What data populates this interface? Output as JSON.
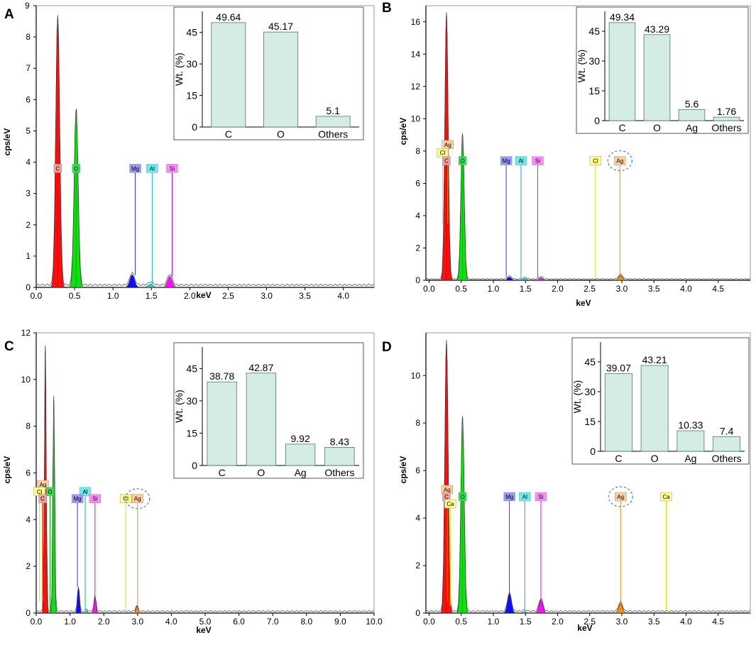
{
  "chart_data": [
    {
      "panel": "A",
      "type": "area",
      "xlabel": "keV",
      "ylabel": "cps/eV",
      "xlim": [
        0,
        4.4
      ],
      "ylim": [
        0,
        9
      ],
      "xticks": [
        "0.0",
        "0.5",
        "1.0",
        "1.5",
        "2.0",
        "2.5",
        "3.0",
        "3.5",
        "4.0"
      ],
      "yticks": [
        "0",
        "1",
        "2",
        "3",
        "4",
        "5",
        "6",
        "7",
        "8",
        "9"
      ],
      "peaks": [
        {
          "element": "C",
          "energy": 0.28,
          "height": 8.7,
          "color": "#ff0000"
        },
        {
          "element": "O",
          "energy": 0.52,
          "height": 5.7,
          "color": "#00e000"
        },
        {
          "element": "Mg",
          "energy": 1.25,
          "height": 0.4,
          "color": "#0000ff"
        },
        {
          "element": "Al",
          "energy": 1.49,
          "height": 0.1,
          "color": "#00dddd"
        },
        {
          "element": "Si",
          "energy": 1.74,
          "height": 0.35,
          "color": "#ff00ff"
        }
      ],
      "element_labels": [
        {
          "text": "C",
          "energy": 0.28,
          "y": 3.8,
          "line_to": 0,
          "bg": "#f4a0a0"
        },
        {
          "text": "O",
          "energy": 0.52,
          "y": 3.8,
          "line_to": 0,
          "bg": "#33dd55"
        },
        {
          "text": "Mg",
          "energy": 1.29,
          "y": 3.8,
          "line_to": 0.4,
          "bg": "#9999ff"
        },
        {
          "text": "Al",
          "energy": 1.51,
          "y": 3.8,
          "line_to": 0.1,
          "bg": "#66eeee"
        },
        {
          "text": "Si",
          "energy": 1.77,
          "y": 3.8,
          "line_to": 0.35,
          "bg": "#ff88ff"
        }
      ],
      "inset": {
        "type": "bar",
        "ylabel": "Wt. (%)",
        "ylim": [
          0,
          55
        ],
        "yticks": [
          "0",
          "15",
          "30",
          "45"
        ],
        "categories": [
          "C",
          "O",
          "Others"
        ],
        "values": [
          49.64,
          45.17,
          5.1
        ],
        "value_labels": [
          "49.64",
          "45.17",
          "5.1"
        ]
      }
    },
    {
      "panel": "B",
      "type": "area",
      "xlabel": "keV",
      "ylabel": "cps/eV",
      "xlim": [
        -0.05,
        5.0
      ],
      "ylim": [
        0,
        17
      ],
      "xticks": [
        "0.0",
        "0.5",
        "1.0",
        "1.5",
        "2.0",
        "2.5",
        "3.0",
        "3.5",
        "4.0",
        "4.5"
      ],
      "yticks": [
        "0",
        "2",
        "4",
        "6",
        "8",
        "10",
        "12",
        "14",
        "16"
      ],
      "peaks": [
        {
          "element": "C",
          "energy": 0.27,
          "height": 16.6,
          "color": "#ff0000"
        },
        {
          "element": "O",
          "energy": 0.52,
          "height": 9.1,
          "color": "#00e000"
        },
        {
          "element": "Mg",
          "energy": 1.25,
          "height": 0.2,
          "color": "#0000ff"
        },
        {
          "element": "Al",
          "energy": 1.49,
          "height": 0.1,
          "color": "#00dddd"
        },
        {
          "element": "Si",
          "energy": 1.74,
          "height": 0.15,
          "color": "#ff00ff"
        },
        {
          "element": "Ag",
          "energy": 2.98,
          "height": 0.3,
          "color": "#ff8800"
        }
      ],
      "element_labels": [
        {
          "text": "Ag",
          "energy": 0.29,
          "y": 8.4,
          "line_to": 3.5,
          "bg": "#ffcc99"
        },
        {
          "text": "Cl",
          "energy": 0.21,
          "y": 7.9,
          "line_to": 3.5,
          "bg": "#ffff88"
        },
        {
          "text": "C",
          "energy": 0.27,
          "y": 7.4,
          "line_to": 0,
          "bg": "#f4a0a0"
        },
        {
          "text": "O",
          "energy": 0.52,
          "y": 7.4,
          "line_to": 0,
          "bg": "#33dd55"
        },
        {
          "text": "Mg",
          "energy": 1.2,
          "y": 7.4,
          "line_to": 0.2,
          "bg": "#9999ff"
        },
        {
          "text": "Al",
          "energy": 1.43,
          "y": 7.4,
          "line_to": 0.1,
          "bg": "#66eeee"
        },
        {
          "text": "Si",
          "energy": 1.69,
          "y": 7.4,
          "line_to": 0.15,
          "bg": "#ff88ff"
        },
        {
          "text": "Cl",
          "energy": 2.59,
          "y": 7.4,
          "line_to": 0.1,
          "bg": "#ffff88"
        },
        {
          "text": "Ag",
          "energy": 2.97,
          "y": 7.4,
          "line_to": 0.3,
          "bg": "#ffcc99",
          "circled": true
        }
      ],
      "inset": {
        "type": "bar",
        "ylabel": "Wt. (%)",
        "ylim": [
          0,
          55
        ],
        "yticks": [
          "0",
          "15",
          "30",
          "45"
        ],
        "categories": [
          "C",
          "O",
          "Ag",
          "Others"
        ],
        "values": [
          49.34,
          43.29,
          5.6,
          1.76
        ],
        "value_labels": [
          "49.34",
          "43.29",
          "5.6",
          "1.76"
        ]
      }
    },
    {
      "panel": "C",
      "type": "area",
      "xlabel": "keV",
      "ylabel": "cps/eV",
      "xlim": [
        0,
        10.0
      ],
      "ylim": [
        0,
        12
      ],
      "xticks": [
        "0.0",
        "1.0",
        "2.0",
        "3.0",
        "4.0",
        "5.0",
        "6.0",
        "7.0",
        "8.0",
        "9.0",
        "10.0"
      ],
      "yticks": [
        "0",
        "2",
        "4",
        "6",
        "8",
        "10",
        "12"
      ],
      "peaks": [
        {
          "element": "C",
          "energy": 0.27,
          "height": 11.4,
          "color": "#ff0000"
        },
        {
          "element": "O",
          "energy": 0.52,
          "height": 9.3,
          "color": "#00e000"
        },
        {
          "element": "Mg",
          "energy": 1.25,
          "height": 1.1,
          "color": "#0000ff"
        },
        {
          "element": "Al",
          "energy": 1.49,
          "height": 0.1,
          "color": "#00dddd"
        },
        {
          "element": "Si",
          "energy": 1.74,
          "height": 0.7,
          "color": "#ff00ff"
        },
        {
          "element": "Ag",
          "energy": 2.98,
          "height": 0.3,
          "color": "#ff8800"
        }
      ],
      "element_labels": [
        {
          "text": "Ag",
          "energy": 0.2,
          "y": 5.5,
          "line_to": 0.5,
          "bg": "#ffcc99"
        },
        {
          "text": "Cl",
          "energy": 0.1,
          "y": 5.2,
          "line_to": 0.5,
          "bg": "#ffff88"
        },
        {
          "text": "O",
          "energy": 0.41,
          "y": 5.2,
          "line_to": 0,
          "bg": "#33dd55"
        },
        {
          "text": "C",
          "energy": 0.19,
          "y": 4.9,
          "line_to": 0,
          "bg": "#f4a0a0"
        },
        {
          "text": "Al",
          "energy": 1.45,
          "y": 5.2,
          "line_to": 0.1,
          "bg": "#66eeee"
        },
        {
          "text": "Mg",
          "energy": 1.22,
          "y": 4.9,
          "line_to": 1.1,
          "bg": "#9999ff"
        },
        {
          "text": "Si",
          "energy": 1.74,
          "y": 4.9,
          "line_to": 0.7,
          "bg": "#ff88ff"
        },
        {
          "text": "Cl",
          "energy": 2.65,
          "y": 4.9,
          "line_to": 0.1,
          "bg": "#ffff88"
        },
        {
          "text": "Ag",
          "energy": 3.0,
          "y": 4.9,
          "line_to": 0.3,
          "bg": "#ffcc99",
          "circled": true
        }
      ],
      "inset": {
        "type": "bar",
        "ylabel": "Wt. (%)",
        "ylim": [
          0,
          55
        ],
        "yticks": [
          "0",
          "15",
          "30",
          "45"
        ],
        "categories": [
          "C",
          "O",
          "Ag",
          "Others"
        ],
        "values": [
          38.78,
          42.87,
          9.92,
          8.43
        ],
        "value_labels": [
          "38.78",
          "42.87",
          "9.92",
          "8.43"
        ]
      }
    },
    {
      "panel": "D",
      "type": "area",
      "xlabel": "keV",
      "ylabel": "cps/eV",
      "xlim": [
        -0.05,
        5.0
      ],
      "ylim": [
        0,
        11.8
      ],
      "xticks": [
        "0.0",
        "0.5",
        "1.0",
        "1.5",
        "2.0",
        "2.5",
        "3.0",
        "3.5",
        "4.0",
        "4.5"
      ],
      "yticks": [
        "0",
        "2",
        "4",
        "6",
        "8",
        "10"
      ],
      "peaks": [
        {
          "element": "C",
          "energy": 0.27,
          "height": 11.5,
          "color": "#ff0000"
        },
        {
          "element": "O",
          "energy": 0.52,
          "height": 8.3,
          "color": "#00e000"
        },
        {
          "element": "Mg",
          "energy": 1.25,
          "height": 0.8,
          "color": "#0000ff"
        },
        {
          "element": "Al",
          "energy": 1.49,
          "height": 0.05,
          "color": "#00dddd"
        },
        {
          "element": "Si",
          "energy": 1.74,
          "height": 0.55,
          "color": "#ff00ff"
        },
        {
          "element": "Ag",
          "energy": 2.98,
          "height": 0.4,
          "color": "#ff8800"
        }
      ],
      "element_labels": [
        {
          "text": "Ag",
          "energy": 0.28,
          "y": 5.2,
          "line_to": 0.5,
          "bg": "#ffcc99"
        },
        {
          "text": "C",
          "energy": 0.27,
          "y": 4.9,
          "line_to": 0,
          "bg": "#f4a0a0"
        },
        {
          "text": "O",
          "energy": 0.52,
          "y": 4.9,
          "line_to": 0,
          "bg": "#33dd55"
        },
        {
          "text": "Ca",
          "energy": 0.33,
          "y": 4.6,
          "line_to": 0.3,
          "bg": "#ffff88"
        },
        {
          "text": "Mg",
          "energy": 1.25,
          "y": 4.9,
          "line_to": 0.8,
          "bg": "#9999ff"
        },
        {
          "text": "Al",
          "energy": 1.49,
          "y": 4.9,
          "line_to": 0.05,
          "bg": "#66eeee"
        },
        {
          "text": "Si",
          "energy": 1.74,
          "y": 4.9,
          "line_to": 0.55,
          "bg": "#ff88ff"
        },
        {
          "text": "Ag",
          "energy": 2.98,
          "y": 4.9,
          "line_to": 0.4,
          "bg": "#ffcc99",
          "circled": true
        },
        {
          "text": "Ca",
          "energy": 3.69,
          "y": 4.9,
          "line_to": 0.1,
          "bg": "#ffff88"
        }
      ],
      "inset": {
        "type": "bar",
        "ylabel": "Wt. (%)",
        "ylim": [
          0,
          55
        ],
        "yticks": [
          "0",
          "15",
          "30",
          "45"
        ],
        "categories": [
          "C",
          "O",
          "Ag",
          "Others"
        ],
        "values": [
          39.07,
          43.21,
          10.33,
          7.4
        ],
        "value_labels": [
          "39.07",
          "43.21",
          "10.33",
          "7.4"
        ]
      }
    }
  ]
}
